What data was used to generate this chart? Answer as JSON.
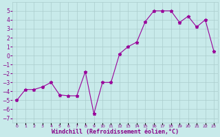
{
  "x_data": [
    0,
    1,
    2,
    3,
    4,
    5,
    6,
    7,
    8,
    9,
    10,
    11,
    12,
    13,
    14,
    15,
    16,
    17,
    18,
    19,
    20,
    21,
    22,
    23
  ],
  "y_data": [
    -5.0,
    -3.8,
    -3.8,
    -3.5,
    -3.0,
    -4.4,
    -4.5,
    -4.5,
    -1.8,
    -6.5,
    -3.0,
    -3.0,
    0.2,
    1.0,
    1.5,
    3.8,
    5.0,
    5.0,
    5.0,
    3.7,
    4.4,
    3.2,
    4.0,
    0.5
  ],
  "line_color": "#990099",
  "bg_color": "#c8eaea",
  "grid_color": "#aacccc",
  "font_color": "#880088",
  "xlabel": "Windchill (Refroidissement éolien,°C)",
  "ylim": [
    -7.5,
    6.0
  ],
  "xlim": [
    -0.5,
    23.5
  ],
  "yticks": [
    -7,
    -6,
    -5,
    -4,
    -3,
    -2,
    -1,
    0,
    1,
    2,
    3,
    4,
    5
  ],
  "xtick_labels": [
    "0",
    "1",
    "2",
    "3",
    "4",
    "5",
    "6",
    "7",
    "8",
    "9",
    "10",
    "11",
    "12",
    "13",
    "14",
    "15",
    "16",
    "17",
    "18",
    "19",
    "20",
    "21",
    "22",
    "23"
  ]
}
